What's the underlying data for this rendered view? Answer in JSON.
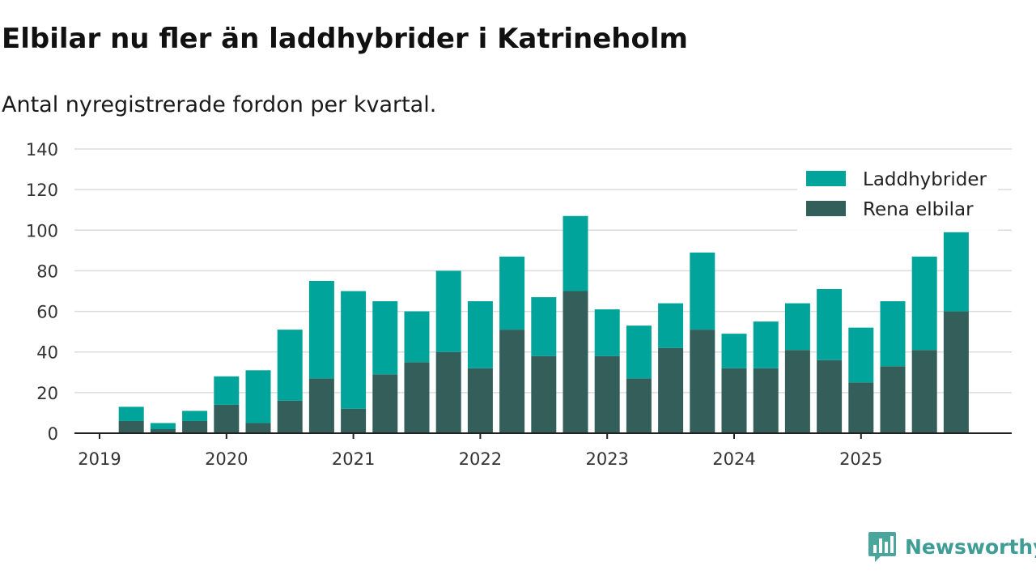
{
  "header": {
    "title": "Elbilar nu fler än laddhybrider i Katrineholm",
    "subtitle": "Antal nyregistrerade fordon per kvartal."
  },
  "brand": {
    "name": "Newsworthy",
    "logo_icon": "newsworthy-logo-icon",
    "color": "#4aa59c"
  },
  "chart_data": {
    "type": "bar",
    "stacked": true,
    "title": "Elbilar nu fler än laddhybrider i Katrineholm",
    "subtitle": "Antal nyregistrerade fordon per kvartal.",
    "xlabel": "",
    "ylabel": "",
    "ylim": [
      0,
      140
    ],
    "yticks": [
      "0",
      "20",
      "40",
      "60",
      "80",
      "100",
      "120",
      "140"
    ],
    "xticks": [
      "2019",
      "2020",
      "2021",
      "2022",
      "2023",
      "2024",
      "2025"
    ],
    "grid": true,
    "legend_position": "top-right",
    "categories": [
      "2019-Q1",
      "2019-Q2",
      "2019-Q3",
      "2019-Q4",
      "2020-Q1",
      "2020-Q2",
      "2020-Q3",
      "2020-Q4",
      "2021-Q1",
      "2021-Q2",
      "2021-Q3",
      "2021-Q4",
      "2022-Q1",
      "2022-Q2",
      "2022-Q3",
      "2022-Q4",
      "2023-Q1",
      "2023-Q2",
      "2023-Q3",
      "2023-Q4",
      "2024-Q1",
      "2024-Q2",
      "2024-Q3",
      "2024-Q4",
      "2025-Q1",
      "2025-Q2",
      "2025-Q3",
      "2025-Q4"
    ],
    "series": [
      {
        "name": "Rena elbilar",
        "color": "#335e5a",
        "values": [
          0,
          6,
          2,
          6,
          14,
          5,
          16,
          27,
          12,
          29,
          35,
          40,
          32,
          51,
          38,
          70,
          38,
          27,
          42,
          51,
          32,
          32,
          41,
          36,
          25,
          33,
          41,
          60
        ]
      },
      {
        "name": "Laddhybrider",
        "color": "#00a49a",
        "values": [
          0,
          7,
          3,
          5,
          14,
          26,
          35,
          48,
          58,
          36,
          25,
          40,
          33,
          36,
          29,
          37,
          23,
          26,
          22,
          38,
          17,
          23,
          23,
          35,
          27,
          32,
          46,
          39
        ]
      }
    ],
    "legend_order": [
      "Laddhybrider",
      "Rena elbilar"
    ]
  }
}
